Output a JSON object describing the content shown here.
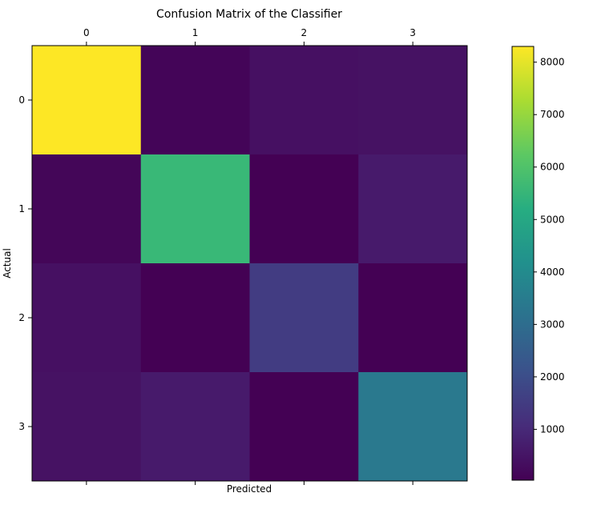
{
  "chart_data": {
    "type": "heatmap",
    "title": "Confusion Matrix of the Classifier",
    "xlabel": "Predicted",
    "ylabel": "Actual",
    "x_categories": [
      "0",
      "1",
      "2",
      "3"
    ],
    "y_categories": [
      "0",
      "1",
      "2",
      "3"
    ],
    "x_ticks_position": "top-and-bottom",
    "colormap": "viridis",
    "values": [
      [
        8300,
        120,
        380,
        420
      ],
      [
        140,
        5600,
        30,
        620
      ],
      [
        380,
        40,
        1500,
        30
      ],
      [
        420,
        620,
        30,
        3400
      ]
    ],
    "colorbar": {
      "ticks": [
        "1000",
        "2000",
        "3000",
        "4000",
        "5000",
        "6000",
        "7000",
        "8000"
      ],
      "range": [
        30,
        8300
      ],
      "placement": "right"
    },
    "grid": false
  }
}
